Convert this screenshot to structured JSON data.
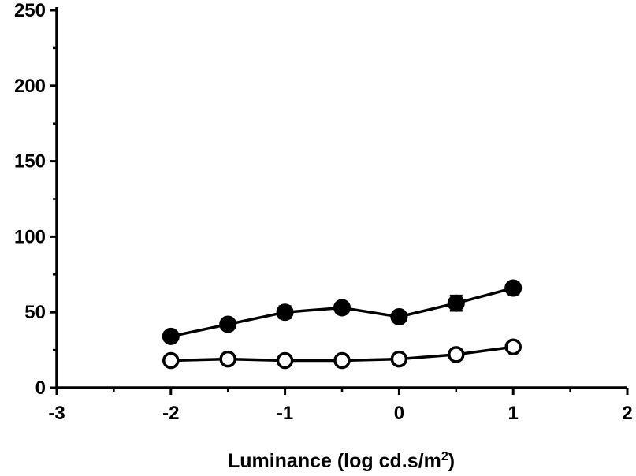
{
  "chart_data": {
    "type": "line",
    "title": "",
    "xlabel": "Luminance (log cd.s/m",
    "xlabel_superscript": "2",
    "xlabel_suffix": ")",
    "ylabel": "",
    "xlim": [
      -3,
      2
    ],
    "ylim": [
      0,
      250
    ],
    "x_ticks": [
      -3,
      -2,
      -1,
      0,
      1,
      2
    ],
    "x_tick_labels": [
      "-3",
      "-2",
      "-1",
      "0",
      "1",
      "2"
    ],
    "y_ticks": [
      0,
      50,
      100,
      150,
      200,
      250
    ],
    "y_tick_labels": [
      "0",
      "50",
      "100",
      "150",
      "200",
      "250"
    ],
    "grid": false,
    "legend": "none",
    "series": [
      {
        "marker": "filled-circle",
        "color": "#000000",
        "x": [
          -2,
          -1.5,
          -1,
          -0.5,
          0,
          0.5,
          1
        ],
        "y": [
          34,
          42,
          50,
          53,
          47,
          56,
          66
        ],
        "err": [
          2,
          2,
          4,
          2,
          2,
          5,
          4
        ]
      },
      {
        "marker": "open-circle",
        "color": "#000000",
        "x": [
          -2,
          -1.5,
          -1,
          -0.5,
          0,
          0.5,
          1
        ],
        "y": [
          18,
          19,
          18,
          18,
          19,
          22,
          27
        ],
        "err": [
          3,
          1,
          1,
          1,
          1,
          1,
          3
        ]
      }
    ]
  }
}
